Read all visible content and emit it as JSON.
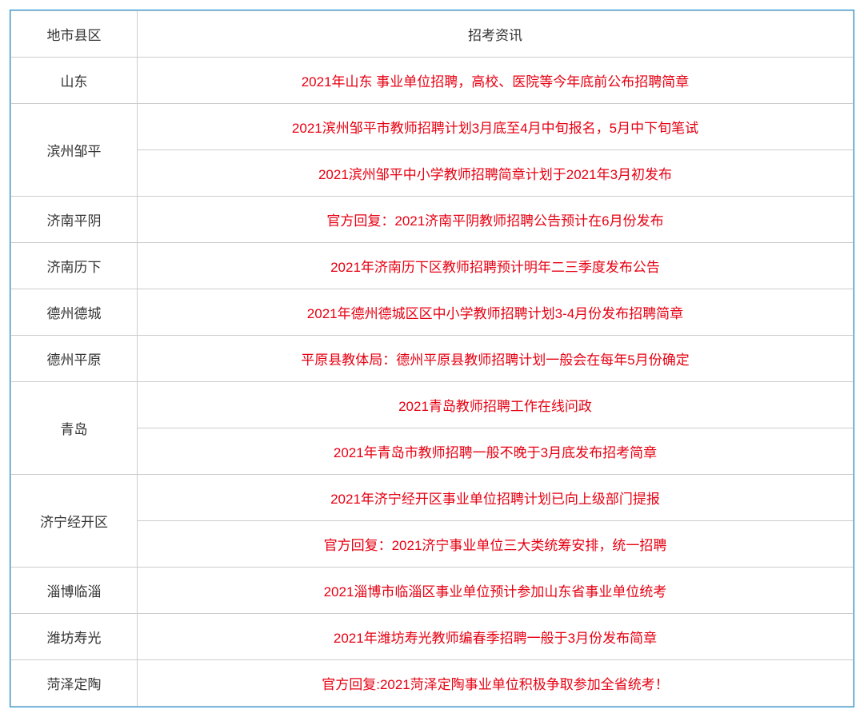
{
  "table": {
    "headers": {
      "region": "地市县区",
      "info": "招考资讯"
    },
    "colors": {
      "border_outer": "#1296db",
      "border_inner": "#cccccc",
      "header_text": "#333333",
      "region_text": "#333333",
      "info_text": "#e60012",
      "background": "#ffffff"
    },
    "col_widths": {
      "region": 158
    },
    "font_size": 17,
    "rows": [
      {
        "region": "山东",
        "rowspan": 1,
        "infos": [
          "2021年山东 事业单位招聘，高校、医院等今年底前公布招聘简章"
        ]
      },
      {
        "region": "滨州邹平",
        "rowspan": 2,
        "infos": [
          "2021滨州邹平市教师招聘计划3月底至4月中旬报名，5月中下旬笔试",
          "2021滨州邹平中小学教师招聘简章计划于2021年3月初发布"
        ]
      },
      {
        "region": "济南平阴",
        "rowspan": 1,
        "infos": [
          "官方回复：2021济南平阴教师招聘公告预计在6月份发布"
        ]
      },
      {
        "region": "济南历下",
        "rowspan": 1,
        "infos": [
          "2021年济南历下区教师招聘预计明年二三季度发布公告"
        ]
      },
      {
        "region": "德州德城",
        "rowspan": 1,
        "infos": [
          "2021年德州德城区区中小学教师招聘计划3-4月份发布招聘简章"
        ]
      },
      {
        "region": "德州平原",
        "rowspan": 1,
        "infos": [
          "平原县教体局：德州平原县教师招聘计划一般会在每年5月份确定"
        ]
      },
      {
        "region": "青岛",
        "rowspan": 2,
        "infos": [
          "2021青岛教师招聘工作在线问政",
          "2021年青岛市教师招聘一般不晚于3月底发布招考简章"
        ]
      },
      {
        "region": "济宁经开区",
        "rowspan": 2,
        "infos": [
          "2021年济宁经开区事业单位招聘计划已向上级部门提报",
          "官方回复：2021济宁事业单位三大类统筹安排，统一招聘"
        ]
      },
      {
        "region": "淄博临淄",
        "rowspan": 1,
        "infos": [
          "2021淄博市临淄区事业单位预计参加山东省事业单位统考"
        ]
      },
      {
        "region": "潍坊寿光",
        "rowspan": 1,
        "infos": [
          "2021年潍坊寿光教师编春季招聘一般于3月份发布简章"
        ]
      },
      {
        "region": "菏泽定陶",
        "rowspan": 1,
        "infos": [
          "官方回复:2021菏泽定陶事业单位积极争取参加全省统考！"
        ]
      }
    ]
  }
}
